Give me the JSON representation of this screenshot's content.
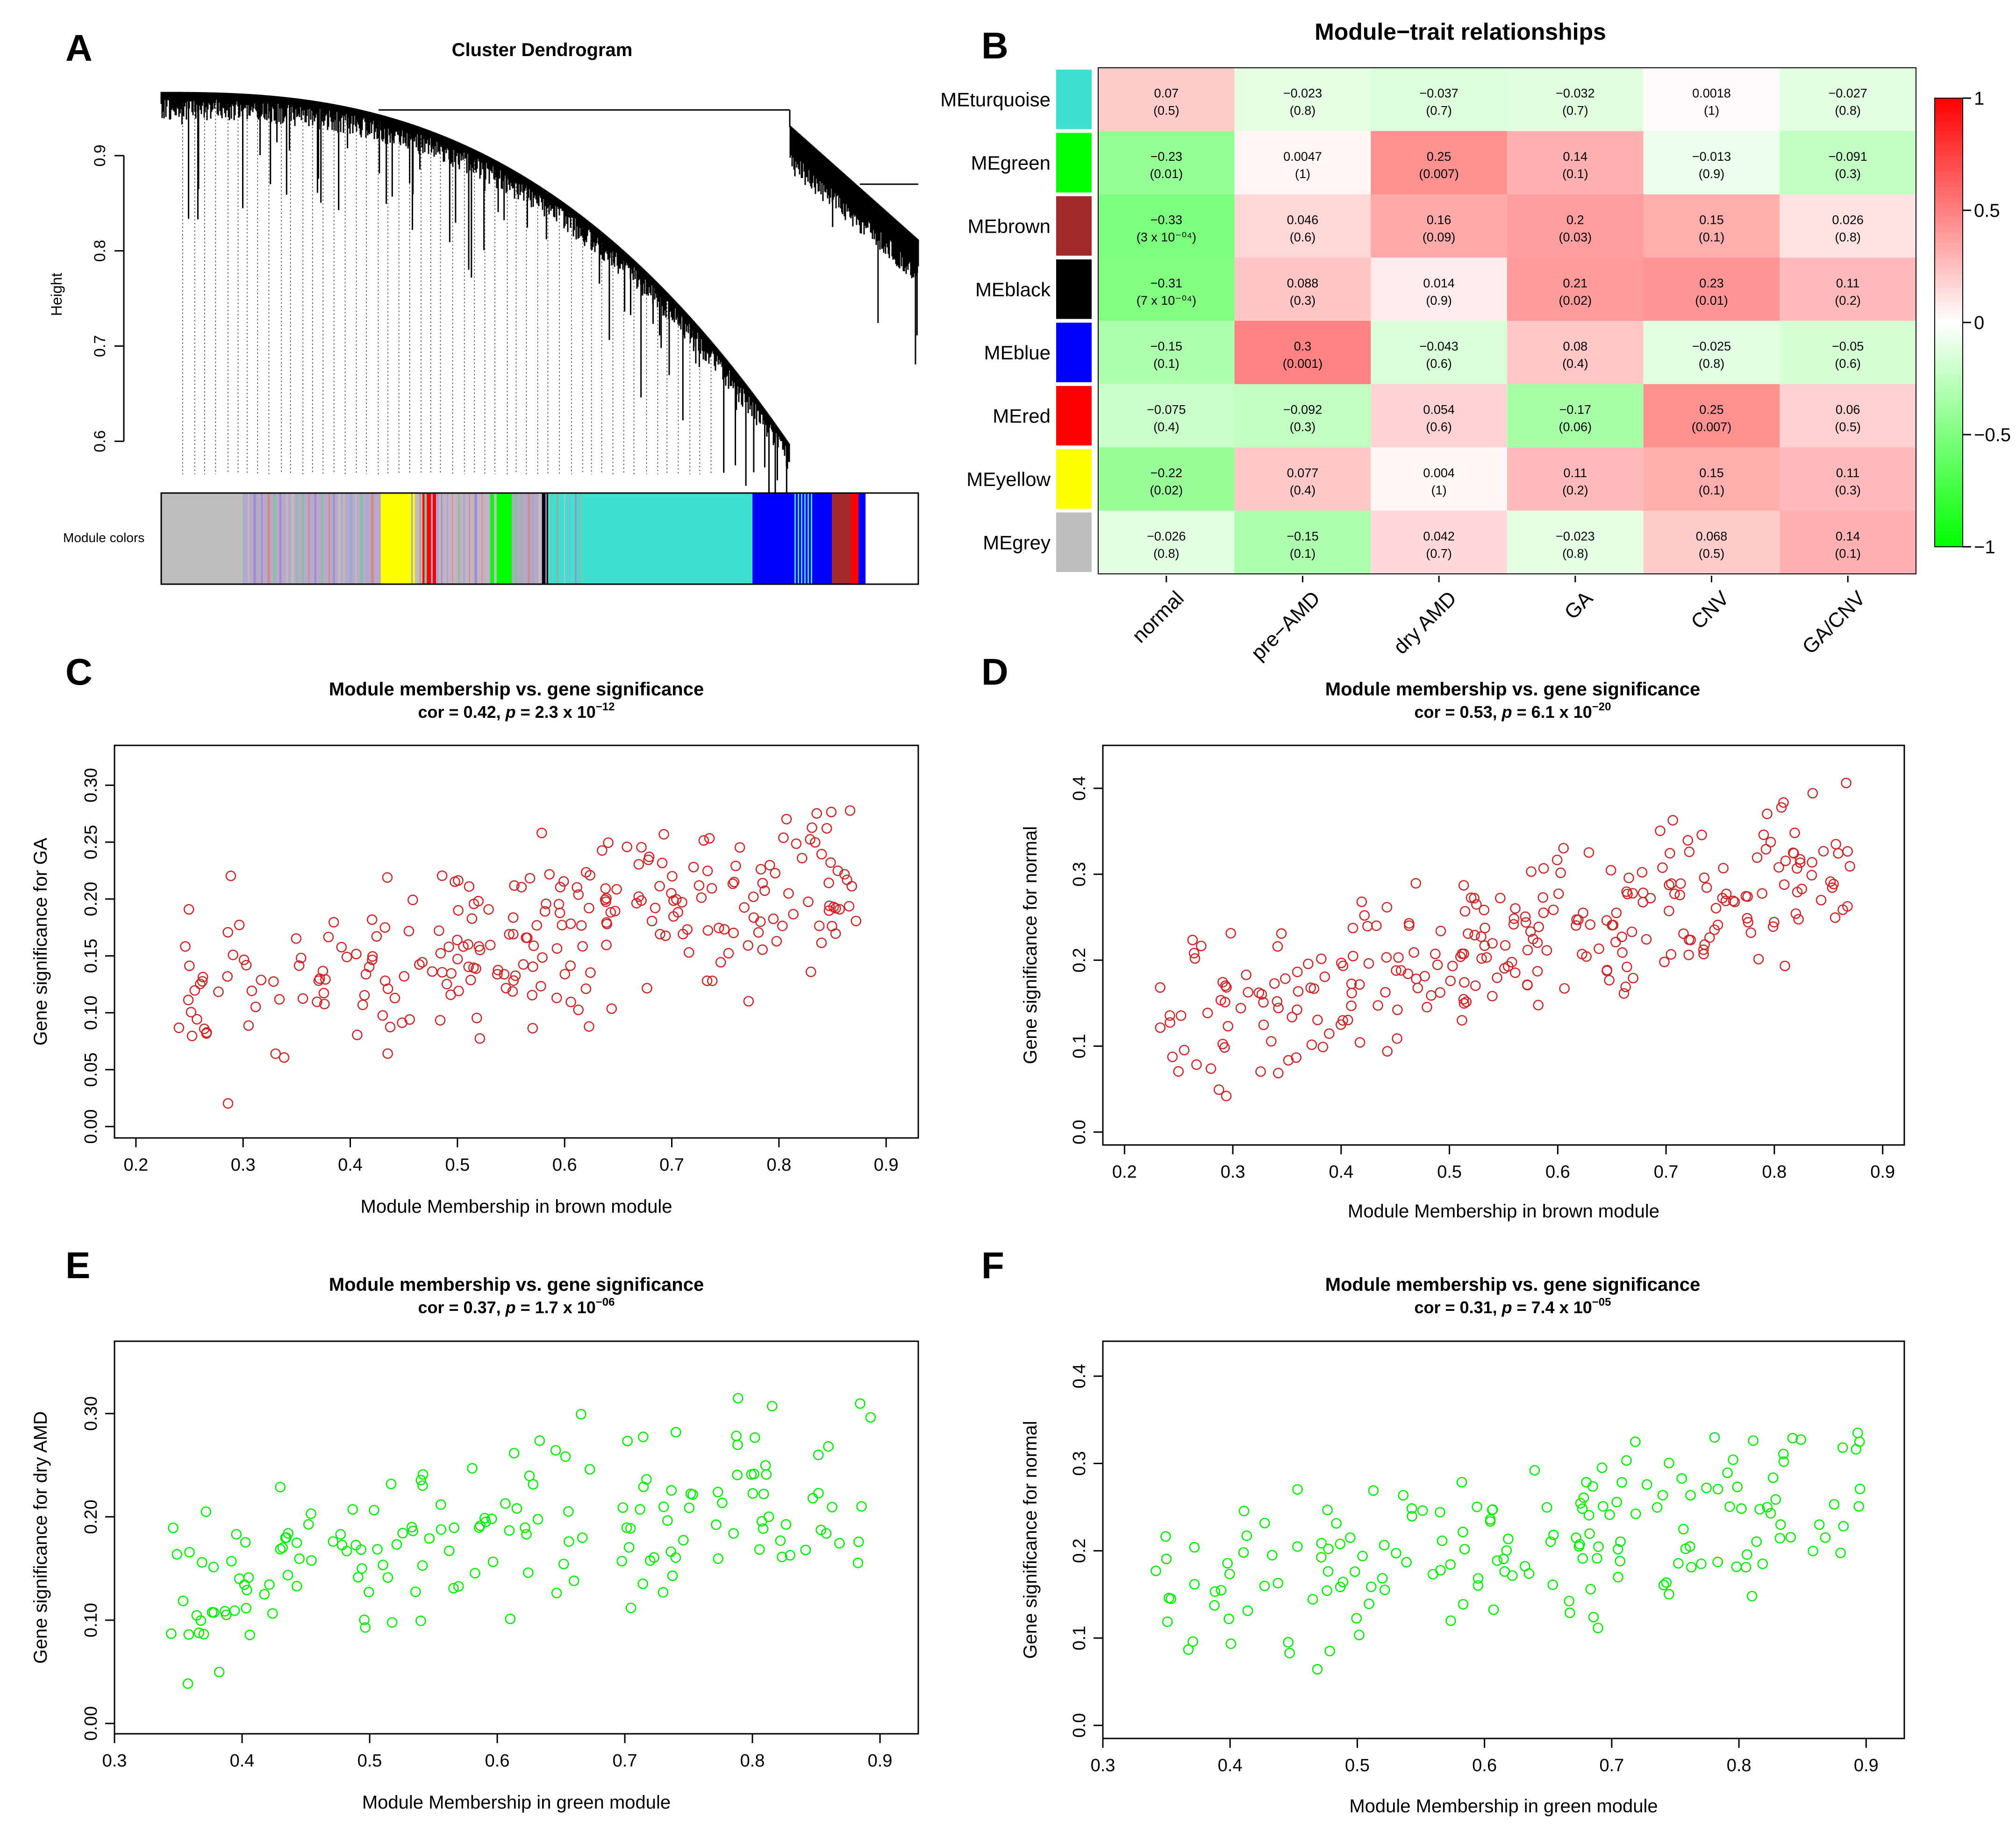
{
  "panels": {
    "A": "A",
    "B": "B",
    "C": "C",
    "D": "D",
    "E": "E",
    "F": "F"
  },
  "dendrogram": {
    "title": "Cluster Dendrogram",
    "ylabel": "Height",
    "ylim": [
      0.58,
      0.98
    ],
    "yticks": [
      0.6,
      0.7,
      0.8,
      0.9
    ],
    "ytick_labels": [
      "0.6",
      "0.7",
      "0.8",
      "0.9"
    ],
    "colorbar_label": "Module colors",
    "module_color_blocks": [
      {
        "module": "grey",
        "color": "#bebebe",
        "width": 0.11
      },
      {
        "module": "mixed",
        "color": "#b9a9c9",
        "width": 0.18
      },
      {
        "module": "yellow",
        "color": "#ffff00",
        "width": 0.045
      },
      {
        "module": "grey",
        "color": "#bebebe",
        "width": 0.01
      },
      {
        "module": "red",
        "color": "#ff0000",
        "width": 0.018
      },
      {
        "module": "mixed",
        "color": "#c4b2c0",
        "width": 0.072
      },
      {
        "module": "green",
        "color": "#00ff00",
        "width": 0.028
      },
      {
        "module": "mixed",
        "color": "#b7a7c4",
        "width": 0.04
      },
      {
        "module": "black",
        "color": "#000000",
        "width": 0.008
      },
      {
        "module": "turquoise",
        "color": "#40e0d0",
        "width": 0.27
      },
      {
        "module": "blue",
        "color": "#0000ff",
        "width": 0.105
      },
      {
        "module": "brown",
        "color": "#a52a2a",
        "width": 0.025
      },
      {
        "module": "red",
        "color": "#ff0000",
        "width": 0.01
      },
      {
        "module": "blue",
        "color": "#0000ff",
        "width": 0.009
      }
    ]
  },
  "heatmap": {
    "title": "Module−trait relationships",
    "rows": [
      "MEturquoise",
      "MEgreen",
      "MEbrown",
      "MEblack",
      "MEblue",
      "MEred",
      "MEyellow",
      "MEgrey"
    ],
    "row_colors": [
      "#40e0d0",
      "#00ff00",
      "#a52a2a",
      "#000000",
      "#0000ff",
      "#ff0000",
      "#ffff00",
      "#bebebe"
    ],
    "cols": [
      "normal",
      "pre−AMD",
      "dry AMD",
      "GA",
      "CNV",
      "GA/CNV"
    ],
    "values": [
      [
        0.07,
        -0.023,
        -0.037,
        -0.032,
        0.0018,
        -0.027
      ],
      [
        -0.23,
        0.0047,
        0.25,
        0.14,
        -0.013,
        -0.091
      ],
      [
        -0.33,
        0.046,
        0.16,
        0.2,
        0.15,
        0.026
      ],
      [
        -0.31,
        0.088,
        0.014,
        0.21,
        0.23,
        0.11
      ],
      [
        -0.15,
        0.3,
        -0.043,
        0.08,
        -0.025,
        -0.05
      ],
      [
        -0.075,
        -0.092,
        0.054,
        -0.17,
        0.25,
        0.06
      ],
      [
        -0.22,
        0.077,
        0.004,
        0.11,
        0.15,
        0.11
      ],
      [
        -0.026,
        -0.15,
        0.042,
        -0.023,
        0.068,
        0.14
      ]
    ],
    "labels": [
      [
        "0.07",
        "−0.023",
        "−0.037",
        "−0.032",
        "0.0018",
        "−0.027"
      ],
      [
        "−0.23",
        "0.0047",
        "0.25",
        "0.14",
        "−0.013",
        "−0.091"
      ],
      [
        "−0.33",
        "0.046",
        "0.16",
        "0.2",
        "0.15",
        "0.026"
      ],
      [
        "−0.31",
        "0.088",
        "0.014",
        "0.21",
        "0.23",
        "0.11"
      ],
      [
        "−0.15",
        "0.3",
        "−0.043",
        "0.08",
        "−0.025",
        "−0.05"
      ],
      [
        "−0.075",
        "−0.092",
        "0.054",
        "−0.17",
        "0.25",
        "0.06"
      ],
      [
        "−0.22",
        "0.077",
        "0.004",
        "0.11",
        "0.15",
        "0.11"
      ],
      [
        "−0.026",
        "−0.15",
        "0.042",
        "−0.023",
        "0.068",
        "0.14"
      ]
    ],
    "pvalues": [
      [
        "(0.5)",
        "(0.8)",
        "(0.7)",
        "(0.7)",
        "(1)",
        "(0.8)"
      ],
      [
        "(0.01)",
        "(1)",
        "(0.007)",
        "(0.1)",
        "(0.9)",
        "(0.3)"
      ],
      [
        "(3 x 10⁻⁰⁴)",
        "(0.6)",
        "(0.09)",
        "(0.03)",
        "(0.1)",
        "(0.8)"
      ],
      [
        "(7 x 10⁻⁰⁴)",
        "(0.3)",
        "(0.9)",
        "(0.02)",
        "(0.01)",
        "(0.2)"
      ],
      [
        "(0.1)",
        "(0.001)",
        "(0.6)",
        "(0.4)",
        "(0.8)",
        "(0.6)"
      ],
      [
        "(0.4)",
        "(0.3)",
        "(0.6)",
        "(0.06)",
        "(0.007)",
        "(0.5)"
      ],
      [
        "(0.02)",
        "(0.4)",
        "(1)",
        "(0.2)",
        "(0.1)",
        "(0.3)"
      ],
      [
        "(0.8)",
        "(0.1)",
        "(0.7)",
        "(0.8)",
        "(0.5)",
        "(0.1)"
      ]
    ],
    "legend_ticks": [
      1,
      0.5,
      0,
      -0.5,
      -1
    ],
    "legend_labels": [
      "1",
      "0.5",
      "0",
      "−0.5",
      "−1"
    ],
    "palette": {
      "neg": "#00ff00",
      "mid": "#ffffff",
      "pos": "#ff0000"
    }
  },
  "chart_data": [
    {
      "id": "C",
      "type": "scatter",
      "title": "Module membership vs. gene significance",
      "subtitle": "cor = 0.42, p = 2.3 x 10⁻¹²",
      "cor_text": "cor = 0.42,",
      "p_label": "p",
      "p_text": "= 2.3 x 10",
      "p_exp": "−12",
      "xlabel": "Module Membership in brown module",
      "ylabel": "Gene significance for GA",
      "xlim": [
        0.18,
        0.93
      ],
      "ylim": [
        -0.01,
        0.335
      ],
      "xticks": [
        0.2,
        0.3,
        0.4,
        0.5,
        0.6,
        0.7,
        0.8,
        0.9
      ],
      "xtick_labels": [
        "0.2",
        "0.3",
        "0.4",
        "0.5",
        "0.6",
        "0.7",
        "0.8",
        "0.9"
      ],
      "yticks": [
        0.0,
        0.05,
        0.1,
        0.15,
        0.2,
        0.25,
        0.3
      ],
      "ytick_labels": [
        "0.00",
        "0.05",
        "0.10",
        "0.15",
        "0.20",
        "0.25",
        "0.30"
      ],
      "color": "#cd2626",
      "n": 260,
      "r": 0.42,
      "seed": 11,
      "x_range": [
        0.2,
        0.9
      ],
      "y_range": [
        0.0,
        0.325
      ]
    },
    {
      "id": "D",
      "type": "scatter",
      "title": "Module membership vs. gene significance",
      "subtitle": "cor = 0.53, p = 6.1 x 10⁻²⁰",
      "cor_text": "cor = 0.53,",
      "p_label": "p",
      "p_text": "= 6.1 x 10",
      "p_exp": "−20",
      "xlabel": "Module Membership in brown module",
      "ylabel": "Gene significance for normal",
      "xlim": [
        0.18,
        0.92
      ],
      "ylim": [
        -0.015,
        0.45
      ],
      "xticks": [
        0.2,
        0.3,
        0.4,
        0.5,
        0.6,
        0.7,
        0.8,
        0.9
      ],
      "xtick_labels": [
        "0.2",
        "0.3",
        "0.4",
        "0.5",
        "0.6",
        "0.7",
        "0.8",
        "0.9"
      ],
      "yticks": [
        0.0,
        0.1,
        0.2,
        0.3,
        0.4
      ],
      "ytick_labels": [
        "0.0",
        "0.1",
        "0.2",
        "0.3",
        "0.4"
      ],
      "color": "#cd2626",
      "n": 270,
      "r": 0.53,
      "seed": 23,
      "x_range": [
        0.2,
        0.9
      ],
      "y_range": [
        0.0,
        0.435
      ]
    },
    {
      "id": "E",
      "type": "scatter",
      "title": "Module membership vs. gene significance",
      "subtitle": "cor = 0.37, p = 1.7 x 10⁻⁰⁶",
      "cor_text": "cor = 0.37,",
      "p_label": "p",
      "p_text": "= 1.7 x 10",
      "p_exp": "−06",
      "xlabel": "Module Membership in green module",
      "ylabel": "Gene significance for dry AMD",
      "xlim": [
        0.3,
        0.93
      ],
      "ylim": [
        -0.01,
        0.37
      ],
      "xticks": [
        0.3,
        0.4,
        0.5,
        0.6,
        0.7,
        0.8,
        0.9
      ],
      "xtick_labels": [
        "0.3",
        "0.4",
        "0.5",
        "0.6",
        "0.7",
        "0.8",
        "0.9"
      ],
      "yticks": [
        0.0,
        0.1,
        0.2,
        0.3
      ],
      "ytick_labels": [
        "0.00",
        "0.10",
        "0.20",
        "0.30"
      ],
      "color": "#00ee00",
      "n": 175,
      "r": 0.37,
      "seed": 37,
      "x_range": [
        0.31,
        0.92
      ],
      "y_range": [
        0.0,
        0.355
      ]
    },
    {
      "id": "F",
      "type": "scatter",
      "title": "Module membership vs. gene significance",
      "subtitle": "cor = 0.31, p = 7.4 x 10⁻⁰⁵",
      "cor_text": "cor = 0.31,",
      "p_label": "p",
      "p_text": "= 7.4 x 10",
      "p_exp": "−05",
      "xlabel": "Module Membership in green module",
      "ylabel": "Gene significance for normal",
      "xlim": [
        0.3,
        0.93
      ],
      "ylim": [
        -0.015,
        0.44
      ],
      "xticks": [
        0.3,
        0.4,
        0.5,
        0.6,
        0.7,
        0.8,
        0.9
      ],
      "xtick_labels": [
        "0.3",
        "0.4",
        "0.5",
        "0.6",
        "0.7",
        "0.8",
        "0.9"
      ],
      "yticks": [
        0.0,
        0.1,
        0.2,
        0.3,
        0.4
      ],
      "ytick_labels": [
        "0.0",
        "0.1",
        "0.2",
        "0.3",
        "0.4"
      ],
      "color": "#00ee00",
      "n": 175,
      "r": 0.31,
      "seed": 53,
      "x_range": [
        0.31,
        0.92
      ],
      "y_range": [
        0.0,
        0.425
      ]
    }
  ]
}
